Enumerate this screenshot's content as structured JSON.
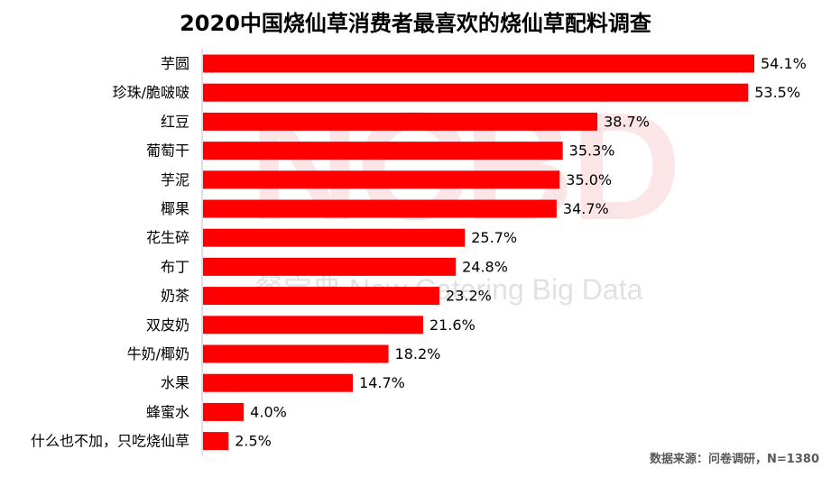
{
  "title": "2020中国烧仙草消费者最喜欢的烧仙草配料调查",
  "source": "数据来源：问卷调研，N=1380",
  "watermark": {
    "logo": "NCBD",
    "cn": "餐宝典",
    "en": "New Catering Big Data"
  },
  "colors": {
    "bar": "#ff0000",
    "axis": "#bfbfbf",
    "text": "#000000",
    "source": "#595959"
  },
  "chart_data": {
    "type": "bar",
    "orientation": "horizontal",
    "title": "2020中国烧仙草消费者最喜欢的烧仙草配料调查",
    "categories": [
      "芋圆",
      "珍珠/脆啵啵",
      "红豆",
      "葡萄干",
      "芋泥",
      "椰果",
      "花生碎",
      "布丁",
      "奶茶",
      "双皮奶",
      "牛奶/椰奶",
      "水果",
      "蜂蜜水",
      "什么也不加，只吃烧仙草"
    ],
    "values": [
      54.1,
      53.5,
      38.7,
      35.3,
      35.0,
      34.7,
      25.7,
      24.8,
      23.2,
      21.6,
      18.2,
      14.7,
      4.0,
      2.5
    ],
    "value_labels": [
      "54.1%",
      "53.5%",
      "38.7%",
      "35.3%",
      "35.0%",
      "34.7%",
      "25.7%",
      "24.8%",
      "23.2%",
      "21.6%",
      "18.2%",
      "14.7%",
      "4.0%",
      "2.5%"
    ],
    "unit": "%",
    "xlim": [
      0,
      54.1
    ],
    "grid": false,
    "legend": "none"
  }
}
